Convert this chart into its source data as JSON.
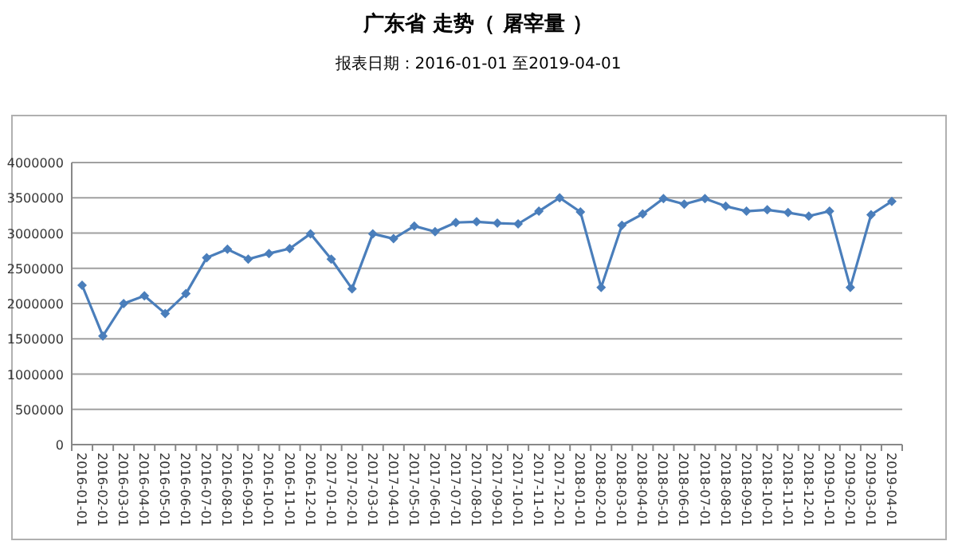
{
  "chart_data": {
    "type": "line",
    "title": "广东省 走势（ 屠宰量 ）",
    "subtitle": "报表日期：2016-01-01 至2019-04-01",
    "categories": [
      "2016-01-01",
      "2016-02-01",
      "2016-03-01",
      "2016-04-01",
      "2016-05-01",
      "2016-06-01",
      "2016-07-01",
      "2016-08-01",
      "2016-09-01",
      "2016-10-01",
      "2016-11-01",
      "2016-12-01",
      "2017-01-01",
      "2017-02-01",
      "2017-03-01",
      "2017-04-01",
      "2017-05-01",
      "2017-06-01",
      "2017-07-01",
      "2017-08-01",
      "2017-09-01",
      "2017-10-01",
      "2017-11-01",
      "2017-12-01",
      "2018-01-01",
      "2018-02-01",
      "2018-03-01",
      "2018-04-01",
      "2018-05-01",
      "2018-06-01",
      "2018-07-01",
      "2018-08-01",
      "2018-09-01",
      "2018-10-01",
      "2018-11-01",
      "2018-12-01",
      "2019-01-01",
      "2019-02-01",
      "2019-03-01",
      "2019-04-01"
    ],
    "values": [
      2260000,
      1540000,
      2000000,
      2110000,
      1860000,
      2140000,
      2650000,
      2770000,
      2630000,
      2710000,
      2780000,
      2990000,
      2630000,
      2210000,
      2990000,
      2920000,
      3100000,
      3020000,
      3150000,
      3160000,
      3140000,
      3130000,
      3310000,
      3500000,
      3300000,
      2230000,
      3110000,
      3270000,
      3490000,
      3410000,
      3490000,
      3380000,
      3310000,
      3330000,
      3290000,
      3240000,
      3310000,
      2230000,
      3260000,
      3450000
    ],
    "color": "#4a7ebb",
    "ylim": [
      0,
      4000000
    ],
    "yticks": [
      0,
      500000,
      1000000,
      1500000,
      2000000,
      2500000,
      3000000,
      3500000,
      4000000
    ],
    "grid": "y",
    "marker": "diamond",
    "line_style": "solid"
  }
}
